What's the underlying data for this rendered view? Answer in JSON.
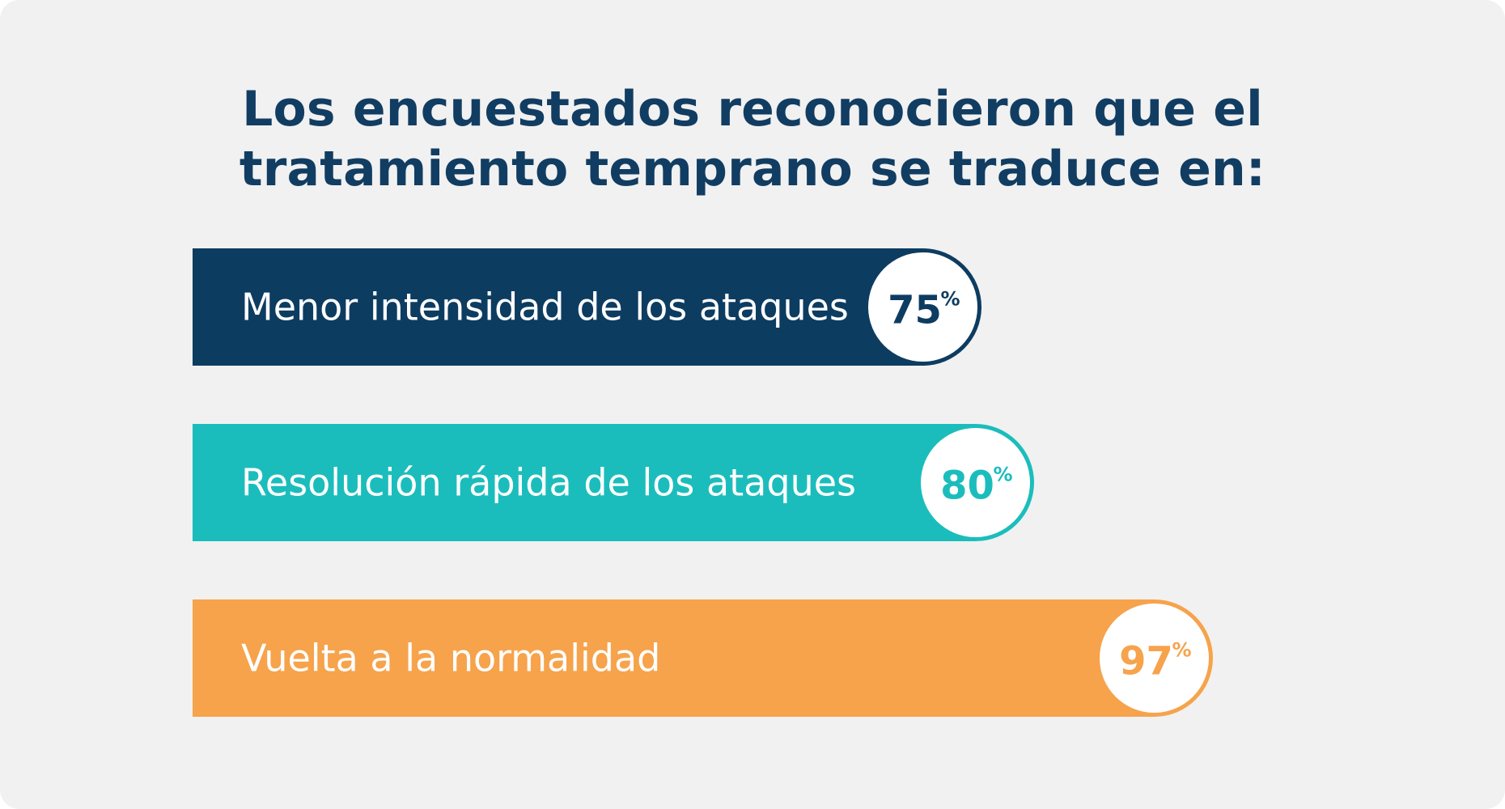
{
  "chart_data": {
    "type": "bar",
    "orientation": "horizontal",
    "title_lines": [
      "Los encuestados reconocieron que el",
      "tratamiento temprano se traduce en:"
    ],
    "categories": [
      "Menor intensidad de los ataques",
      "Resolución rápida de los ataques",
      "Vuelta a la normalidad"
    ],
    "values": [
      75,
      80,
      97
    ],
    "value_labels": [
      "75",
      "80",
      "97"
    ],
    "unit": "%",
    "xlim": [
      0,
      100
    ],
    "colors": [
      "#0d3c61",
      "#1bbdbc",
      "#f6a34c"
    ],
    "legend": "none",
    "grid": false
  }
}
